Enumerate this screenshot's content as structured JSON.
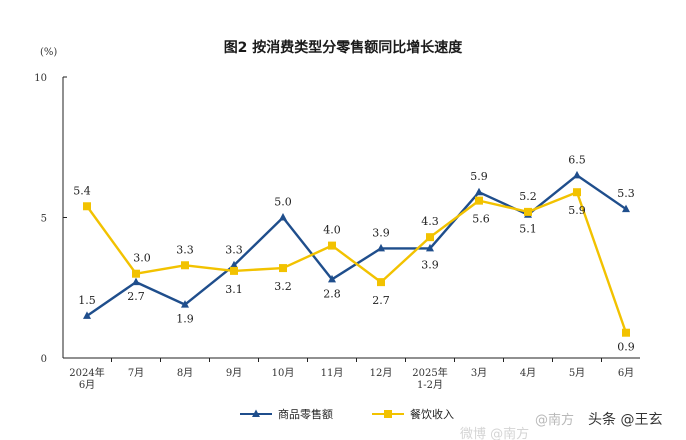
{
  "chart_data": {
    "type": "line",
    "title": "图2  按消费类型分零售额同比增长速度",
    "unit_label": "(%)",
    "ylim": [
      0,
      10
    ],
    "yticks": [
      "0",
      "5",
      "10"
    ],
    "categories": [
      "2024年\n6月",
      "7月",
      "8月",
      "9月",
      "10月",
      "11月",
      "12月",
      "2025年\n1-2月",
      "3月",
      "4月",
      "5月",
      "6月"
    ],
    "series": [
      {
        "name": "商品零售额",
        "color": "#1f4e8c",
        "marker": "triangle",
        "values": [
          1.5,
          2.7,
          1.9,
          3.3,
          5.0,
          2.8,
          3.9,
          3.9,
          5.9,
          5.1,
          6.5,
          5.3
        ],
        "labels": [
          "1.5",
          "2.7",
          "1.9",
          "3.3",
          "5.0",
          "2.8",
          "3.9",
          "3.9",
          "5.9",
          "5.1",
          "6.5",
          "5.3"
        ]
      },
      {
        "name": "餐饮收入",
        "color": "#f2c200",
        "marker": "square",
        "values": [
          5.4,
          3.0,
          3.3,
          3.1,
          3.2,
          4.0,
          2.7,
          4.3,
          5.6,
          5.2,
          5.9,
          0.9
        ],
        "labels": [
          "5.4",
          "3.0",
          "3.3",
          "3.1",
          "3.2",
          "4.0",
          "2.7",
          "4.3",
          "5.6",
          "5.2",
          "5.9",
          "0.9"
        ]
      }
    ],
    "grid": false,
    "legend_position": "bottom-center"
  },
  "watermark": {
    "text": "头条 @王玄",
    "faint_text": "微博 @南方",
    "faint_left": "@南方"
  }
}
